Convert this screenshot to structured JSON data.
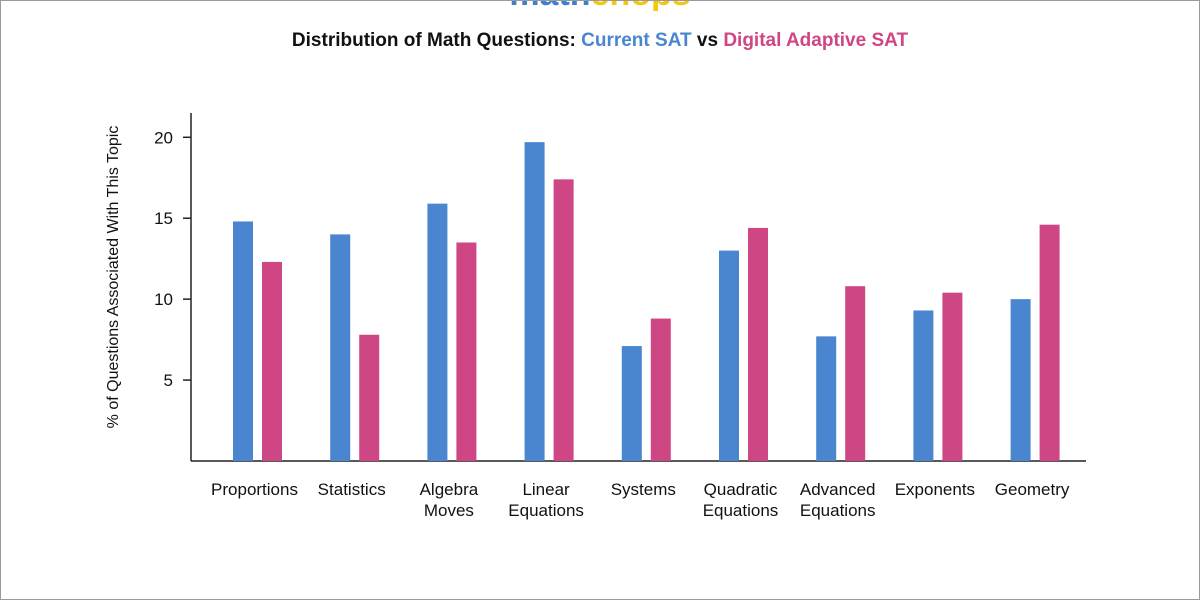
{
  "logo": {
    "parts": [
      {
        "text": "math",
        "color": "#3f7fd0"
      },
      {
        "text": "chops",
        "color": "#f2c811"
      }
    ]
  },
  "title": {
    "prefix": "Distribution of Math Questions: ",
    "series_a": "Current SAT",
    "middle": " vs ",
    "series_b": "Digital Adaptive SAT",
    "prefix_color": "#111111",
    "series_a_color": "#4a86d0",
    "series_b_color": "#cf4684"
  },
  "chart_data": {
    "type": "bar",
    "title": "Distribution of Math Questions: Current SAT vs Digital Adaptive SAT",
    "xlabel": "",
    "ylabel": "% of Questions Associated With This Topic",
    "ylim": [
      0,
      21.5
    ],
    "yticks": [
      5,
      10,
      15,
      20
    ],
    "grid": false,
    "legend": "none",
    "categories": [
      [
        "Proportions"
      ],
      [
        "Statistics"
      ],
      [
        "Algebra",
        "Moves"
      ],
      [
        "Linear",
        "Equations"
      ],
      [
        "Systems"
      ],
      [
        "Quadratic",
        "Equations"
      ],
      [
        "Advanced",
        "Equations"
      ],
      [
        "Exponents"
      ],
      [
        "Geometry"
      ]
    ],
    "series": [
      {
        "name": "Current SAT",
        "color": "#4a86d0",
        "values": [
          14.8,
          14.0,
          15.9,
          19.7,
          7.1,
          13.0,
          7.7,
          9.3,
          10.0
        ]
      },
      {
        "name": "Digital Adaptive SAT",
        "color": "#cf4684",
        "values": [
          12.3,
          7.8,
          13.5,
          17.4,
          8.8,
          14.4,
          10.8,
          10.4,
          14.6
        ]
      }
    ]
  }
}
